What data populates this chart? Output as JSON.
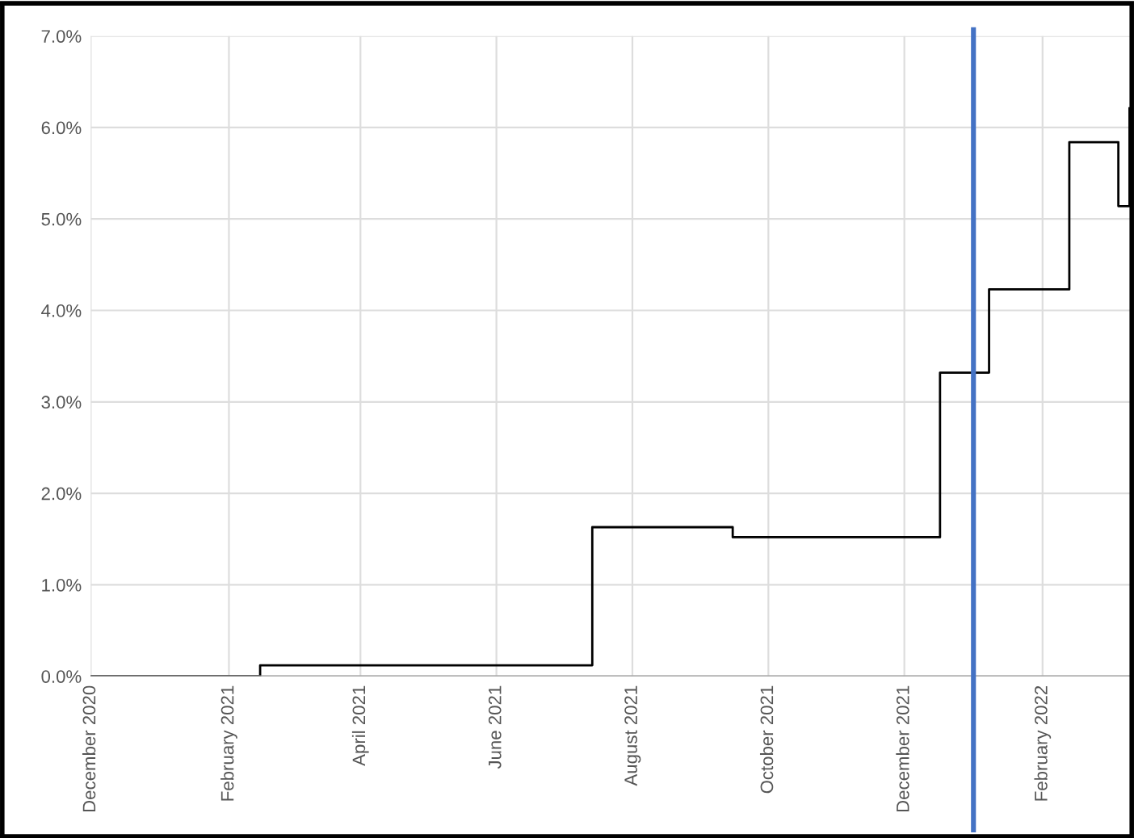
{
  "chart_data": {
    "type": "step",
    "x": [
      "2020-12-01",
      "2021-02-15",
      "2021-07-14",
      "2021-09-15",
      "2021-12-17",
      "2022-01-08",
      "2022-02-13",
      "2022-03-07",
      "2022-03-12"
    ],
    "series": [
      {
        "color": "#000000",
        "values": [
          0,
          0.12,
          1.63,
          1.52,
          3.32,
          4.23,
          5.84,
          5.14,
          6.21
        ]
      }
    ],
    "xlim": [
      "2020-12-01",
      "2022-03-13"
    ],
    "xticks": [
      {
        "value": "2020-12-01",
        "label": "December 2020"
      },
      {
        "value": "2021-02-01",
        "label": "February 2021"
      },
      {
        "value": "2021-04-01",
        "label": "April 2021"
      },
      {
        "value": "2021-06-01",
        "label": "June 2021"
      },
      {
        "value": "2021-08-01",
        "label": "August 2021"
      },
      {
        "value": "2021-10-01",
        "label": "October 2021"
      },
      {
        "value": "2021-12-01",
        "label": "December 2021"
      },
      {
        "value": "2022-02-01",
        "label": "February 2022"
      }
    ],
    "ylim": [
      0,
      7
    ],
    "yticks": [
      {
        "value": 0,
        "label": "0.0%"
      },
      {
        "value": 1,
        "label": "1.0%"
      },
      {
        "value": 2,
        "label": "2.0%"
      },
      {
        "value": 3,
        "label": "3.0%"
      },
      {
        "value": 4,
        "label": "4.0%"
      },
      {
        "value": 5,
        "label": "5.0%"
      },
      {
        "value": 6,
        "label": "6.0%"
      },
      {
        "value": 7,
        "label": "7.0%"
      }
    ],
    "ref_lines": [
      {
        "axis": "x",
        "value": "2022-01-01",
        "color": "#4472c4"
      }
    ],
    "grid": true,
    "legend": false
  }
}
